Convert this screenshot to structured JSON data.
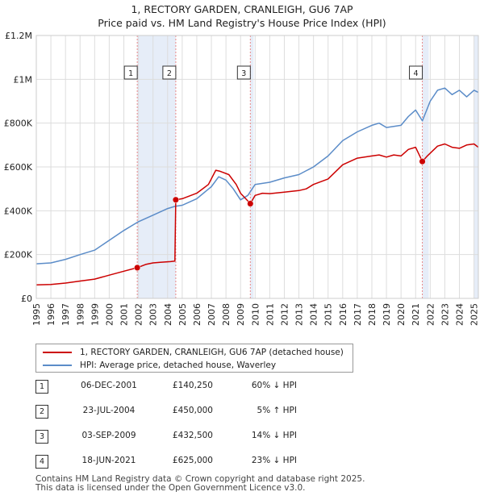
{
  "chart_data": {
    "type": "line",
    "title": "1, RECTORY GARDEN, CRANLEIGH, GU6 7AP",
    "subtitle": "Price paid vs. HM Land Registry's House Price Index (HPI)",
    "xlim": [
      1995,
      2025.3
    ],
    "ylim": [
      0,
      1200000
    ],
    "x_ticks": [
      "1995",
      "1996",
      "1997",
      "1998",
      "1999",
      "2000",
      "2001",
      "2002",
      "2003",
      "2004",
      "2005",
      "2006",
      "2007",
      "2008",
      "2009",
      "2010",
      "2011",
      "2012",
      "2013",
      "2014",
      "2015",
      "2016",
      "2017",
      "2018",
      "2019",
      "2020",
      "2021",
      "2022",
      "2023",
      "2024",
      "2025"
    ],
    "y_ticks": [
      {
        "value": 0,
        "label": "£0"
      },
      {
        "value": 200000,
        "label": "£200K"
      },
      {
        "value": 400000,
        "label": "£400K"
      },
      {
        "value": 600000,
        "label": "£600K"
      },
      {
        "value": 800000,
        "label": "£800K"
      },
      {
        "value": 1000000,
        "label": "£1M"
      },
      {
        "value": 1200000,
        "label": "£1.2M"
      }
    ],
    "colors": {
      "property": "#cc0000",
      "hpi": "#5b8cc8",
      "shade": "#e6edf8",
      "grid": "#dddddd",
      "vline": "#e88888"
    },
    "series": [
      {
        "name": "1, RECTORY GARDEN, CRANLEIGH, GU6 7AP (detached house)",
        "color": "#cc0000",
        "points": [
          [
            1995.0,
            62000
          ],
          [
            1996.0,
            63500
          ],
          [
            1997.0,
            70000
          ],
          [
            1998.0,
            79000
          ],
          [
            1999.0,
            88000
          ],
          [
            2000.0,
            106000
          ],
          [
            2001.0,
            124000
          ],
          [
            2001.92,
            140250
          ],
          [
            2002.5,
            155000
          ],
          [
            2003.0,
            162000
          ],
          [
            2003.5,
            165000
          ],
          [
            2004.2,
            168000
          ],
          [
            2004.5,
            170000
          ],
          [
            2004.56,
            450000
          ],
          [
            2005.0,
            455000
          ],
          [
            2006.0,
            480000
          ],
          [
            2006.8,
            520000
          ],
          [
            2007.3,
            585000
          ],
          [
            2007.6,
            580000
          ],
          [
            2008.2,
            565000
          ],
          [
            2008.7,
            520000
          ],
          [
            2009.0,
            480000
          ],
          [
            2009.5,
            445000
          ],
          [
            2009.67,
            432500
          ],
          [
            2010.0,
            470000
          ],
          [
            2010.5,
            480000
          ],
          [
            2011.0,
            478000
          ],
          [
            2012.0,
            485000
          ],
          [
            2013.0,
            492000
          ],
          [
            2013.5,
            500000
          ],
          [
            2014.0,
            520000
          ],
          [
            2015.0,
            545000
          ],
          [
            2016.0,
            610000
          ],
          [
            2017.0,
            640000
          ],
          [
            2018.0,
            650000
          ],
          [
            2018.5,
            655000
          ],
          [
            2019.0,
            645000
          ],
          [
            2019.5,
            655000
          ],
          [
            2020.0,
            650000
          ],
          [
            2020.5,
            680000
          ],
          [
            2021.0,
            690000
          ],
          [
            2021.46,
            625000
          ],
          [
            2021.8,
            650000
          ],
          [
            2022.5,
            695000
          ],
          [
            2023.0,
            705000
          ],
          [
            2023.5,
            690000
          ],
          [
            2024.0,
            685000
          ],
          [
            2024.5,
            700000
          ],
          [
            2025.0,
            705000
          ],
          [
            2025.3,
            690000
          ]
        ]
      },
      {
        "name": "HPI: Average price, detached house, Waverley",
        "color": "#5b8cc8",
        "points": [
          [
            1995.0,
            158000
          ],
          [
            1996.0,
            162000
          ],
          [
            1997.0,
            178000
          ],
          [
            1998.0,
            200000
          ],
          [
            1999.0,
            220000
          ],
          [
            2000.0,
            265000
          ],
          [
            2001.0,
            310000
          ],
          [
            2002.0,
            350000
          ],
          [
            2003.0,
            380000
          ],
          [
            2004.0,
            410000
          ],
          [
            2004.5,
            420000
          ],
          [
            2005.0,
            425000
          ],
          [
            2006.0,
            455000
          ],
          [
            2007.0,
            510000
          ],
          [
            2007.5,
            555000
          ],
          [
            2008.0,
            540000
          ],
          [
            2008.5,
            500000
          ],
          [
            2009.0,
            450000
          ],
          [
            2009.5,
            470000
          ],
          [
            2010.0,
            520000
          ],
          [
            2011.0,
            530000
          ],
          [
            2012.0,
            550000
          ],
          [
            2013.0,
            565000
          ],
          [
            2014.0,
            600000
          ],
          [
            2015.0,
            650000
          ],
          [
            2016.0,
            720000
          ],
          [
            2017.0,
            760000
          ],
          [
            2018.0,
            790000
          ],
          [
            2018.5,
            800000
          ],
          [
            2019.0,
            780000
          ],
          [
            2020.0,
            790000
          ],
          [
            2020.5,
            830000
          ],
          [
            2021.0,
            860000
          ],
          [
            2021.46,
            810000
          ],
          [
            2022.0,
            900000
          ],
          [
            2022.5,
            950000
          ],
          [
            2023.0,
            960000
          ],
          [
            2023.5,
            930000
          ],
          [
            2024.0,
            950000
          ],
          [
            2024.5,
            920000
          ],
          [
            2025.0,
            950000
          ],
          [
            2025.3,
            940000
          ]
        ]
      }
    ],
    "sales": [
      {
        "id": "1",
        "year": 2001.92,
        "price": 140250
      },
      {
        "id": "2",
        "year": 2004.56,
        "price": 450000
      },
      {
        "id": "3",
        "year": 2009.67,
        "price": 432500
      },
      {
        "id": "4",
        "year": 2021.46,
        "price": 625000
      }
    ],
    "shaded_ranges": [
      [
        2001.92,
        2004.56
      ],
      [
        2009.67,
        2009.9
      ],
      [
        2021.46,
        2021.9
      ],
      [
        2025.0,
        2025.3
      ]
    ]
  },
  "legend": {
    "property_label": "1, RECTORY GARDEN, CRANLEIGH, GU6 7AP (detached house)",
    "hpi_label": "HPI: Average price, detached house, Waverley"
  },
  "sales_table": [
    {
      "num": "1",
      "date": "06-DEC-2001",
      "price": "£140,250",
      "hpi": "60% ↓ HPI"
    },
    {
      "num": "2",
      "date": "23-JUL-2004",
      "price": "£450,000",
      "hpi": "5% ↑ HPI"
    },
    {
      "num": "3",
      "date": "03-SEP-2009",
      "price": "£432,500",
      "hpi": "14% ↓ HPI"
    },
    {
      "num": "4",
      "date": "18-JUN-2021",
      "price": "£625,000",
      "hpi": "23% ↓ HPI"
    }
  ],
  "footer": {
    "line1": "Contains HM Land Registry data © Crown copyright and database right 2025.",
    "line2": "This data is licensed under the Open Government Licence v3.0."
  }
}
